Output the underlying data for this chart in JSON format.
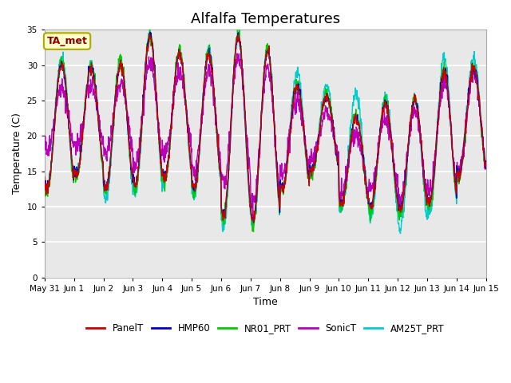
{
  "title": "Alfalfa Temperatures",
  "ylabel": "Temperature (C)",
  "xlabel": "Time",
  "annotation": "TA_met",
  "ylim": [
    0,
    35
  ],
  "yticks": [
    0,
    5,
    10,
    15,
    20,
    25,
    30,
    35
  ],
  "series_colors": {
    "PanelT": "#cc0000",
    "HMP60": "#0000cc",
    "NR01_PRT": "#00cc00",
    "SonicT": "#bb00bb",
    "AM25T_PRT": "#00cccc"
  },
  "tick_labels": [
    "May 31",
    "Jun 1",
    "Jun 2",
    "Jun 3",
    "Jun 4",
    "Jun 5",
    "Jun 6",
    "Jun 7",
    "Jun 8",
    "Jun 9",
    "Jun 10",
    "Jun 11",
    "Jun 12",
    "Jun 13",
    "Jun 14",
    "Jun 15"
  ],
  "background_color": "#ffffff",
  "plot_bg_color": "#e8e8e8",
  "grid_color": "#ffffff",
  "title_fontsize": 13,
  "n_days": 15,
  "pts_per_day": 96
}
